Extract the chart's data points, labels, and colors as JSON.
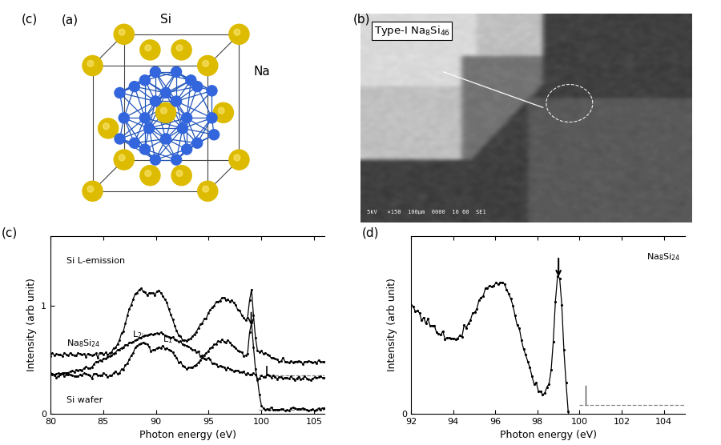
{
  "fig_width": 9.0,
  "fig_height": 5.56,
  "dpi": 100,
  "panel_c": {
    "xlabel": "Photon energy (eV)",
    "ylabel": "Intensity (arb unit)",
    "xlim": [
      80,
      106
    ],
    "ylim": [
      0,
      1.65
    ],
    "yticks": [
      0,
      1
    ],
    "xticks": [
      80,
      85,
      90,
      95,
      100,
      105
    ]
  },
  "panel_d": {
    "xlabel": "Photon energy (eV)",
    "ylabel": "Intensity (arb unit)",
    "xlim": [
      92,
      105
    ],
    "ylim": [
      0,
      1.4
    ],
    "yticks": [
      0
    ],
    "xticks": [
      92,
      94,
      96,
      98,
      100,
      102,
      104
    ]
  }
}
